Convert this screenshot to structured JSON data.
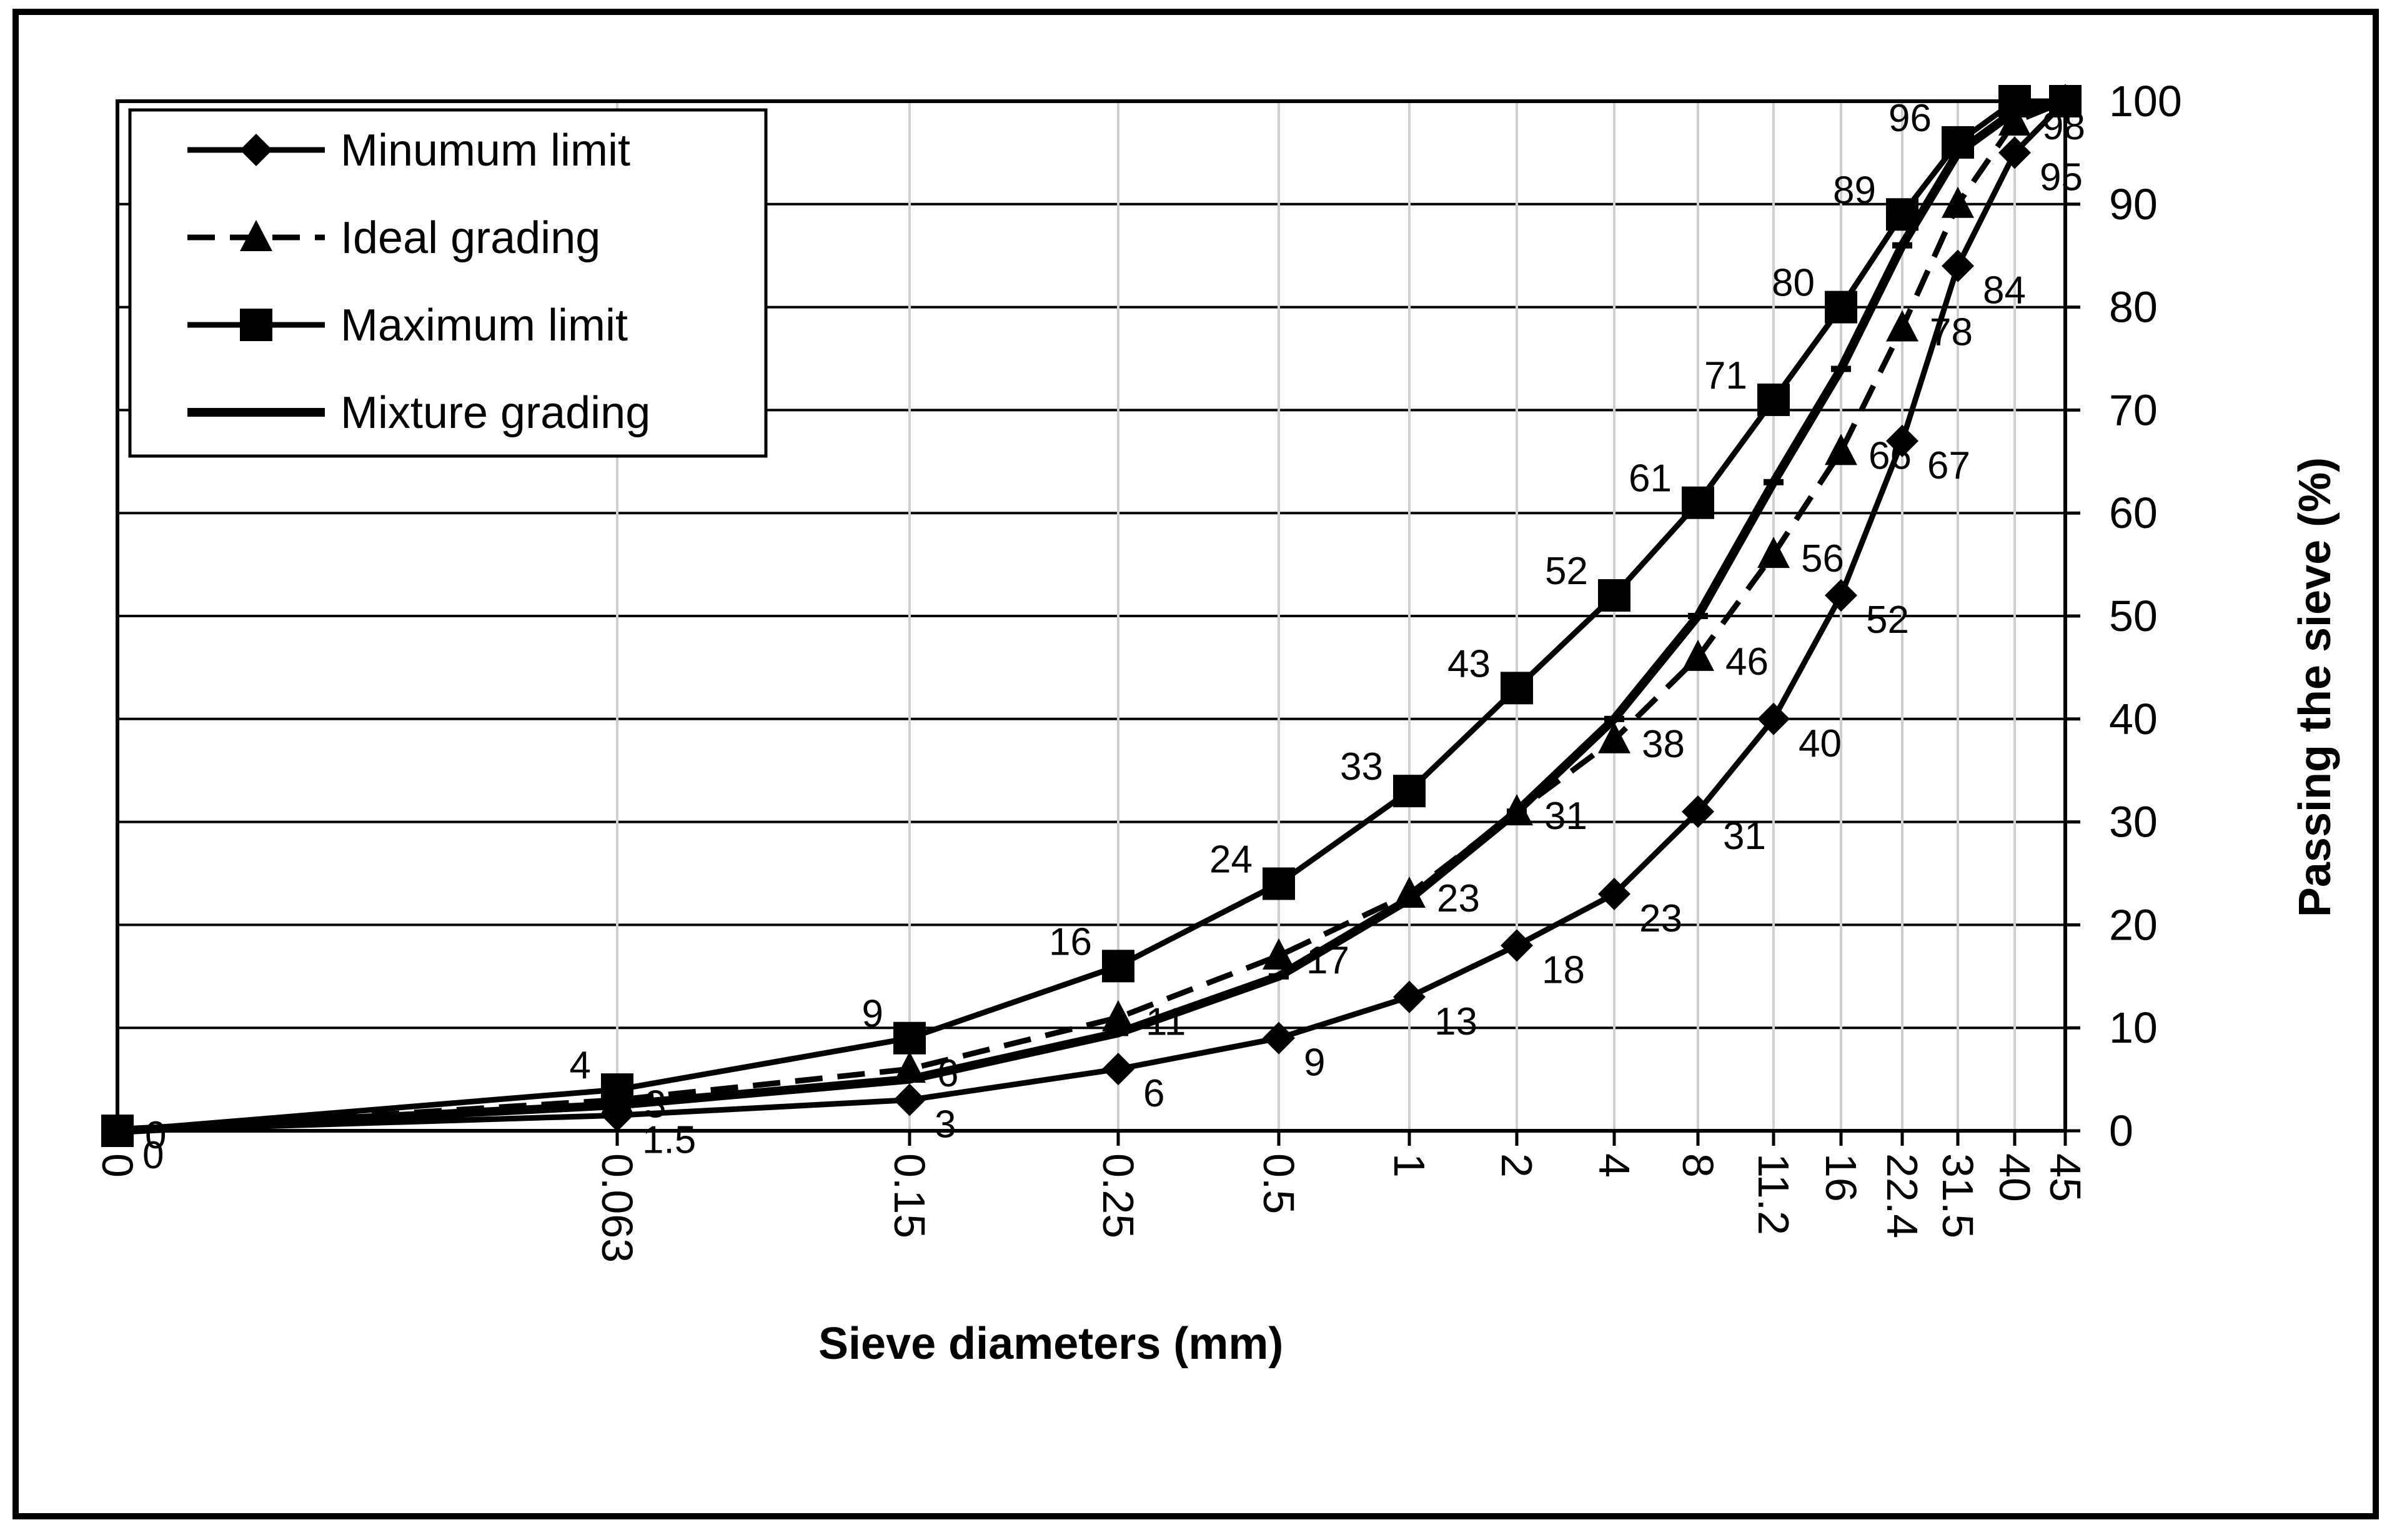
{
  "chart_data": {
    "type": "line",
    "xlabel": "Sieve diameters (mm)",
    "ylabel": "Passing the sieve (%)",
    "ylim": [
      0,
      100
    ],
    "y_ticks": [
      "0",
      "10",
      "20",
      "30",
      "40",
      "50",
      "60",
      "70",
      "80",
      "90",
      "100"
    ],
    "x_axis_scale": "categorical, tick labels rotated vertical",
    "categories": [
      "0",
      "0.063",
      "0.15",
      "0.25",
      "0.5",
      "1",
      "2",
      "4",
      "8",
      "11.2",
      "16",
      "22.4",
      "31.5",
      "40",
      "45"
    ],
    "grid": "horizontal and vertical gridlines",
    "legend_position": "top-left",
    "series": [
      {
        "name": "Minumum limit",
        "marker": "diamond",
        "line": "solid",
        "values": [
          0,
          1.5,
          3,
          6,
          9,
          13,
          18,
          23,
          31,
          40,
          52,
          67,
          84,
          95,
          100
        ],
        "labels": [
          "0",
          "1.5",
          "3",
          "6",
          "9",
          "13",
          "18",
          "23",
          "31",
          "40",
          "52",
          "67",
          "84",
          "95",
          ""
        ]
      },
      {
        "name": "Ideal grading",
        "marker": "triangle",
        "line": "dashed",
        "values": [
          0,
          3,
          6,
          11,
          17,
          23,
          31,
          38,
          46,
          56,
          66,
          78,
          90,
          98,
          100
        ],
        "labels": [
          "0",
          "3",
          "6",
          "11",
          "17",
          "23",
          "31",
          "38",
          "46",
          "56",
          "66",
          "78",
          "",
          "98",
          ""
        ]
      },
      {
        "name": "Maximum limit",
        "marker": "square",
        "line": "solid",
        "values": [
          0,
          4,
          9,
          16,
          24,
          33,
          43,
          52,
          61,
          71,
          80,
          89,
          96,
          100,
          100
        ],
        "labels": [
          "",
          "4",
          "9",
          "16",
          "24",
          "33",
          "43",
          "52",
          "61",
          "71",
          "80",
          "89",
          "96",
          "",
          ""
        ]
      },
      {
        "name": "Mixture grading",
        "marker": "dash",
        "line": "thick solid",
        "values": [
          0,
          2.5,
          5,
          9.5,
          15,
          22.5,
          31,
          40,
          50,
          63,
          74,
          86,
          95,
          99,
          100
        ],
        "labels": []
      }
    ]
  }
}
